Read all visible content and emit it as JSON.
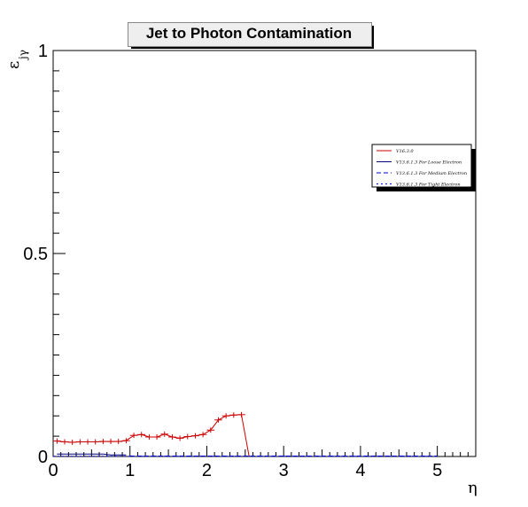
{
  "chart_data": {
    "type": "line",
    "title": "Jet to Photon Contamination",
    "xlabel": "η",
    "ylabel_main": "ε",
    "ylabel_sub": "jγ",
    "xlim": [
      0,
      5.5
    ],
    "ylim": [
      0,
      1
    ],
    "x_ticks": [
      "0",
      "1",
      "2",
      "3",
      "4",
      "5"
    ],
    "y_ticks": [
      "0",
      "0.5",
      "1"
    ],
    "legend_position": "top-right",
    "series": [
      {
        "name": "V16.3.0",
        "color": "#cc0000",
        "style": "solid",
        "x": [
          0.05,
          0.15,
          0.25,
          0.35,
          0.45,
          0.55,
          0.65,
          0.75,
          0.85,
          0.95,
          1.05,
          1.15,
          1.25,
          1.35,
          1.45,
          1.55,
          1.65,
          1.75,
          1.85,
          1.95,
          2.05,
          2.15,
          2.25,
          2.35,
          2.45,
          2.55
        ],
        "y": [
          0.038,
          0.036,
          0.035,
          0.036,
          0.036,
          0.036,
          0.037,
          0.037,
          0.037,
          0.039,
          0.052,
          0.054,
          0.048,
          0.048,
          0.055,
          0.048,
          0.045,
          0.049,
          0.051,
          0.054,
          0.065,
          0.09,
          0.1,
          0.102,
          0.103,
          0.0
        ],
        "xerr": 0.05
      },
      {
        "name": "V13.6.1.3 For Loose Electron",
        "color": "#000080",
        "style": "solid",
        "x": [
          0.05,
          0.15,
          0.25,
          0.35,
          0.45,
          0.55,
          0.65,
          0.75,
          0.85,
          0.95
        ],
        "y": [
          0.006,
          0.006,
          0.006,
          0.006,
          0.006,
          0.006,
          0.006,
          0.004,
          0.004,
          0.004
        ]
      },
      {
        "name": "V13.6.1.3 For Medium Electron",
        "color": "#0000cc",
        "style": "dashed",
        "x": [
          1.0,
          5.0
        ],
        "y": [
          0.001,
          0.001
        ]
      },
      {
        "name": "V13.6.1.3 For Tight Electron",
        "color": "#0000ff",
        "style": "dotted",
        "x": [
          0.0,
          5.0
        ],
        "y": [
          0.0005,
          0.0005
        ]
      }
    ]
  }
}
